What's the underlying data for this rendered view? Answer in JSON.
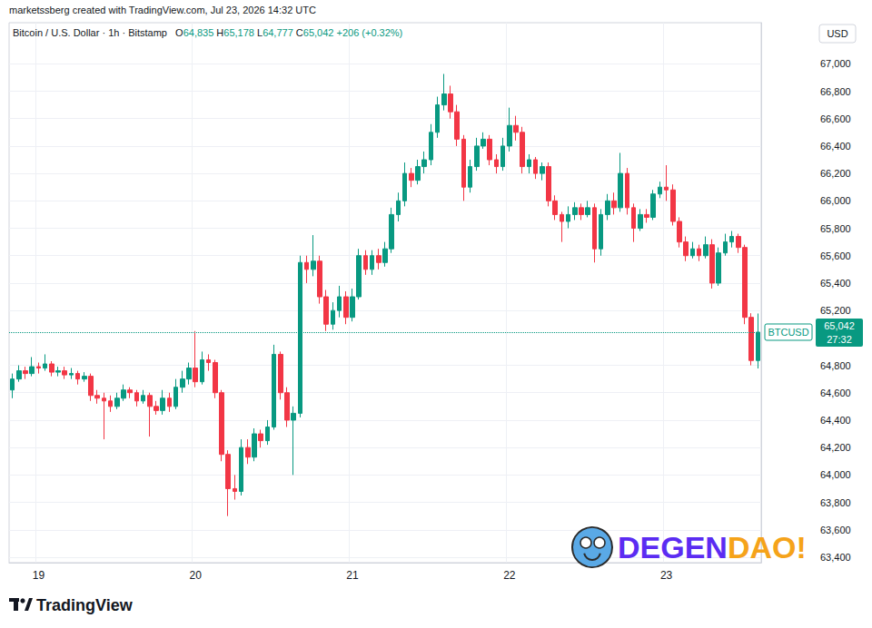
{
  "header": {
    "credit": "marketssberg created with TradingView.com, Jul 23, 2026 14:32 UTC",
    "symbol": "Bitcoin / U.S. Dollar · 1h · Bitstamp",
    "ohlc": [
      {
        "key": "O",
        "value": "64,835"
      },
      {
        "key": "H",
        "value": "65,178"
      },
      {
        "key": "L",
        "value": "64,777"
      },
      {
        "key": "C",
        "value": "65,042"
      }
    ],
    "change": "+206 (+0.32%)",
    "currency": "USD"
  },
  "footer": {
    "logo": "TradingView",
    "watermark": [
      "DEGEN",
      "DAO!"
    ]
  },
  "chart_data": {
    "type": "candlestick",
    "categories": [
      null,
      null,
      null,
      null,
      "19",
      null,
      null,
      null,
      null,
      null,
      null,
      null,
      null,
      null,
      null,
      null,
      null,
      null,
      null,
      null,
      null,
      null,
      null,
      null,
      null,
      null,
      null,
      null,
      "20",
      null,
      null,
      null,
      null,
      null,
      null,
      null,
      null,
      null,
      null,
      null,
      null,
      null,
      null,
      null,
      null,
      null,
      null,
      null,
      null,
      null,
      null,
      null,
      "21",
      null,
      null,
      null,
      null,
      null,
      null,
      null,
      null,
      null,
      null,
      null,
      null,
      null,
      null,
      null,
      null,
      null,
      null,
      null,
      null,
      null,
      null,
      null,
      "22",
      null,
      null,
      null,
      null,
      null,
      null,
      null,
      null,
      null,
      null,
      null,
      null,
      null,
      null,
      null,
      null,
      null,
      null,
      null,
      null,
      null,
      null,
      null,
      "23",
      null,
      null,
      null,
      null,
      null,
      null,
      null,
      null,
      null,
      null,
      null,
      null,
      null,
      null
    ],
    "series": [
      {
        "name": "BTCUSD",
        "open": [
          64620,
          64700,
          64760,
          64740,
          64790,
          64780,
          64810,
          64750,
          64760,
          64730,
          64740,
          64700,
          64720,
          64580,
          64560,
          64540,
          64500,
          64560,
          64620,
          64600,
          64540,
          64580,
          64500,
          64470,
          64560,
          64500,
          64640,
          64700,
          64780,
          64680,
          64840,
          64820,
          64600,
          64150,
          63900,
          63880,
          64200,
          64130,
          64300,
          64250,
          64350,
          64880,
          64600,
          64400,
          64450,
          65550,
          65500,
          65560,
          65300,
          65100,
          65200,
          65300,
          65150,
          65300,
          65600,
          65500,
          65600,
          65550,
          65650,
          65900,
          66000,
          66200,
          66150,
          66250,
          66300,
          66500,
          66700,
          66780,
          66650,
          66450,
          66100,
          66250,
          66400,
          66450,
          66300,
          66250,
          66400,
          66550,
          66500,
          66250,
          66300,
          66200,
          66250,
          66000,
          65900,
          65850,
          65900,
          65950,
          65900,
          65950,
          65650,
          65900,
          66000,
          65950,
          66200,
          65950,
          65800,
          65900,
          65880,
          66050,
          66100,
          66080,
          65850,
          65700,
          65600,
          65650,
          65600,
          65680,
          65400,
          65620,
          65700,
          65740,
          65660,
          65150,
          64835
        ],
        "high": [
          64740,
          64800,
          64790,
          64860,
          64820,
          64880,
          64830,
          64790,
          64790,
          64780,
          64760,
          64750,
          64740,
          64620,
          64600,
          64580,
          64600,
          64660,
          64640,
          64620,
          64620,
          64600,
          64540,
          64620,
          64600,
          64700,
          64760,
          64820,
          65050,
          64900,
          64880,
          64840,
          64620,
          64180,
          64000,
          64260,
          64260,
          64340,
          64330,
          64400,
          64950,
          64900,
          64640,
          64500,
          65600,
          65600,
          65750,
          65600,
          65350,
          65260,
          65380,
          65340,
          65360,
          65650,
          65640,
          65640,
          65650,
          65700,
          65950,
          66060,
          66280,
          66240,
          66300,
          66360,
          66560,
          66760,
          66926,
          66840,
          66700,
          66480,
          66300,
          66460,
          66500,
          66480,
          66340,
          66460,
          66680,
          66620,
          66540,
          66340,
          66320,
          66280,
          66280,
          66040,
          65920,
          65960,
          65990,
          65980,
          66000,
          65980,
          65940,
          66050,
          66060,
          66350,
          66240,
          65980,
          65940,
          65940,
          66080,
          66140,
          66260,
          66120,
          65880,
          65740,
          65700,
          65680,
          65740,
          65720,
          65660,
          65760,
          65780,
          65760,
          65680,
          65180,
          65178
        ],
        "low": [
          64560,
          64680,
          64700,
          64720,
          64740,
          64760,
          64720,
          64720,
          64700,
          64700,
          64660,
          64680,
          64540,
          64520,
          64260,
          64460,
          64480,
          64540,
          64560,
          64500,
          64520,
          64280,
          64440,
          64440,
          64460,
          64480,
          64600,
          64660,
          64640,
          64660,
          64760,
          64560,
          64100,
          63700,
          63820,
          63850,
          64080,
          64100,
          64200,
          64220,
          64330,
          64550,
          64350,
          64000,
          64420,
          65400,
          65450,
          65250,
          65050,
          65060,
          65150,
          65100,
          65120,
          65280,
          65460,
          65460,
          65500,
          65520,
          65620,
          65850,
          65960,
          66100,
          66120,
          66200,
          66260,
          66460,
          66660,
          66600,
          66400,
          66000,
          66060,
          66220,
          66380,
          66260,
          66200,
          66220,
          66360,
          66440,
          66200,
          66200,
          66160,
          66150,
          65960,
          65860,
          65700,
          65800,
          65860,
          65860,
          65880,
          65550,
          65600,
          65860,
          65900,
          65920,
          65900,
          65700,
          65780,
          65840,
          65860,
          66020,
          66000,
          65820,
          65660,
          65560,
          65580,
          65560,
          65580,
          65360,
          65380,
          65600,
          65660,
          65620,
          65100,
          64800,
          64777
        ],
        "close": [
          64700,
          64760,
          64740,
          64790,
          64780,
          64810,
          64750,
          64760,
          64730,
          64740,
          64700,
          64720,
          64580,
          64560,
          64540,
          64500,
          64560,
          64620,
          64600,
          64540,
          64580,
          64500,
          64470,
          64560,
          64500,
          64640,
          64700,
          64780,
          64680,
          64840,
          64820,
          64600,
          64150,
          63900,
          63880,
          64200,
          64130,
          64300,
          64250,
          64350,
          64880,
          64600,
          64400,
          64450,
          65550,
          65500,
          65560,
          65300,
          65100,
          65200,
          65300,
          65150,
          65300,
          65600,
          65500,
          65600,
          65550,
          65650,
          65900,
          66000,
          66200,
          66150,
          66250,
          66300,
          66500,
          66700,
          66780,
          66650,
          66450,
          66100,
          66250,
          66400,
          66450,
          66300,
          66250,
          66400,
          66550,
          66500,
          66250,
          66300,
          66200,
          66250,
          66000,
          65900,
          65850,
          65900,
          65950,
          65900,
          65950,
          65650,
          65900,
          66000,
          65950,
          66200,
          65950,
          65800,
          65900,
          65880,
          66050,
          66100,
          66080,
          65850,
          65700,
          65600,
          65650,
          65600,
          65680,
          65400,
          65620,
          65700,
          65740,
          65660,
          65150,
          64835,
          65042
        ]
      }
    ],
    "ylim": [
      63360,
      67300
    ],
    "yticks": [
      {
        "value": 63400,
        "label": "63,400"
      },
      {
        "value": 63600,
        "label": "63,600"
      },
      {
        "value": 63800,
        "label": "63,800"
      },
      {
        "value": 64000,
        "label": "64,000"
      },
      {
        "value": 64200,
        "label": "64,200"
      },
      {
        "value": 64400,
        "label": "64,400"
      },
      {
        "value": 64600,
        "label": "64,600"
      },
      {
        "value": 64800,
        "label": "64,800"
      },
      {
        "value": 65200,
        "label": "65,200"
      },
      {
        "value": 65400,
        "label": "65,400"
      },
      {
        "value": 65600,
        "label": "65,600"
      },
      {
        "value": 65800,
        "label": "65,800"
      },
      {
        "value": 66000,
        "label": "66,000"
      },
      {
        "value": 66200,
        "label": "66,200"
      },
      {
        "value": 66400,
        "label": "66,400"
      },
      {
        "value": 66600,
        "label": "66,600"
      },
      {
        "value": 66800,
        "label": "66,800"
      },
      {
        "value": 67000,
        "label": "67,000"
      }
    ],
    "last_price": {
      "value": 65042,
      "label": "65,042",
      "countdown": "27:32"
    },
    "grid": true
  }
}
